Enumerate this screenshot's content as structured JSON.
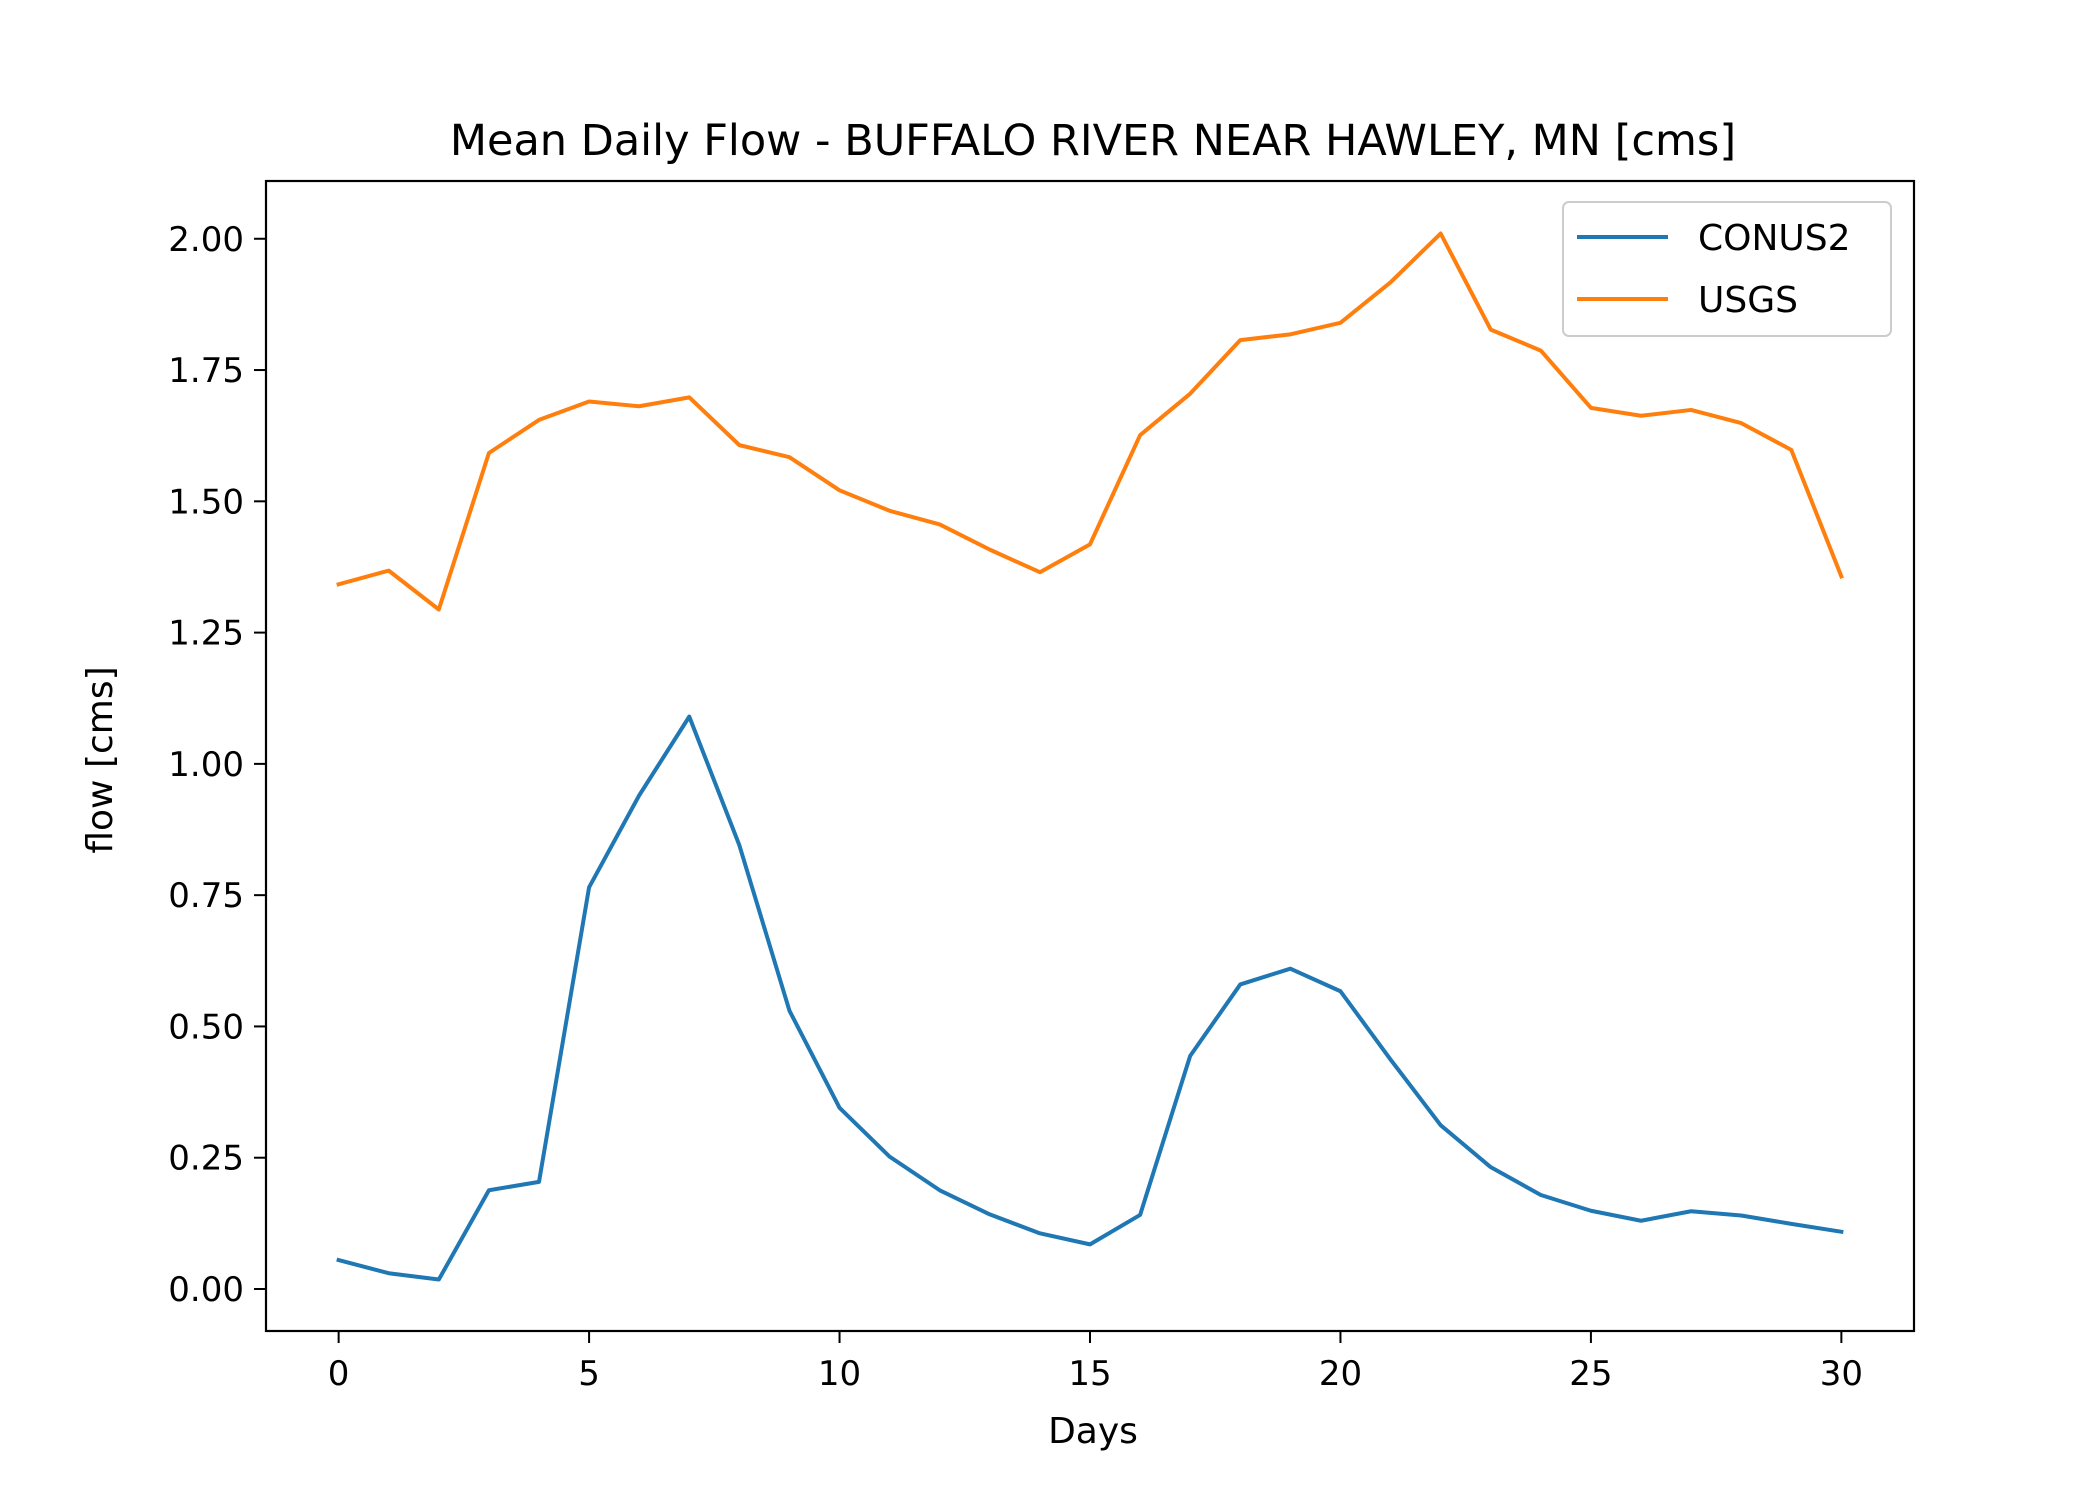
{
  "chart_data": {
    "type": "line",
    "title": "Mean Daily Flow - BUFFALO RIVER NEAR HAWLEY, MN [cms]",
    "xlabel": "Days",
    "ylabel": "flow [cms]",
    "xlim": [
      -1.45,
      31.45
    ],
    "ylim": [
      -0.08,
      2.11
    ],
    "xticks": [
      0,
      5,
      10,
      15,
      20,
      25,
      30
    ],
    "xtick_labels": [
      "0",
      "5",
      "10",
      "15",
      "20",
      "25",
      "30"
    ],
    "yticks": [
      0.0,
      0.25,
      0.5,
      0.75,
      1.0,
      1.25,
      1.5,
      1.75,
      2.0
    ],
    "ytick_labels": [
      "0.00",
      "0.25",
      "0.50",
      "0.75",
      "1.00",
      "1.25",
      "1.50",
      "1.75",
      "2.00"
    ],
    "grid": false,
    "legend_position": "top-right",
    "x": [
      0,
      1,
      2,
      3,
      4,
      5,
      6,
      7,
      8,
      9,
      10,
      11,
      12,
      13,
      14,
      15,
      16,
      17,
      18,
      19,
      20,
      21,
      22,
      23,
      24,
      25,
      26,
      27,
      28,
      29,
      30
    ],
    "series": [
      {
        "name": "CONUS2",
        "color": "#1f77b4",
        "values": [
          0.055,
          0.03,
          0.018,
          0.188,
          0.204,
          0.765,
          0.94,
          1.09,
          0.845,
          0.53,
          0.345,
          0.252,
          0.188,
          0.142,
          0.106,
          0.085,
          0.141,
          0.444,
          0.58,
          0.61,
          0.567,
          0.437,
          0.312,
          0.232,
          0.179,
          0.149,
          0.13,
          0.148,
          0.14,
          0.124,
          0.109
        ]
      },
      {
        "name": "USGS",
        "color": "#ff7f0e",
        "values": [
          1.342,
          1.368,
          1.294,
          1.592,
          1.655,
          1.69,
          1.681,
          1.698,
          1.607,
          1.584,
          1.521,
          1.482,
          1.456,
          1.408,
          1.365,
          1.418,
          1.626,
          1.705,
          1.807,
          1.818,
          1.84,
          1.917,
          2.01,
          1.827,
          1.787,
          1.678,
          1.663,
          1.674,
          1.649,
          1.598,
          1.357
        ]
      }
    ]
  }
}
